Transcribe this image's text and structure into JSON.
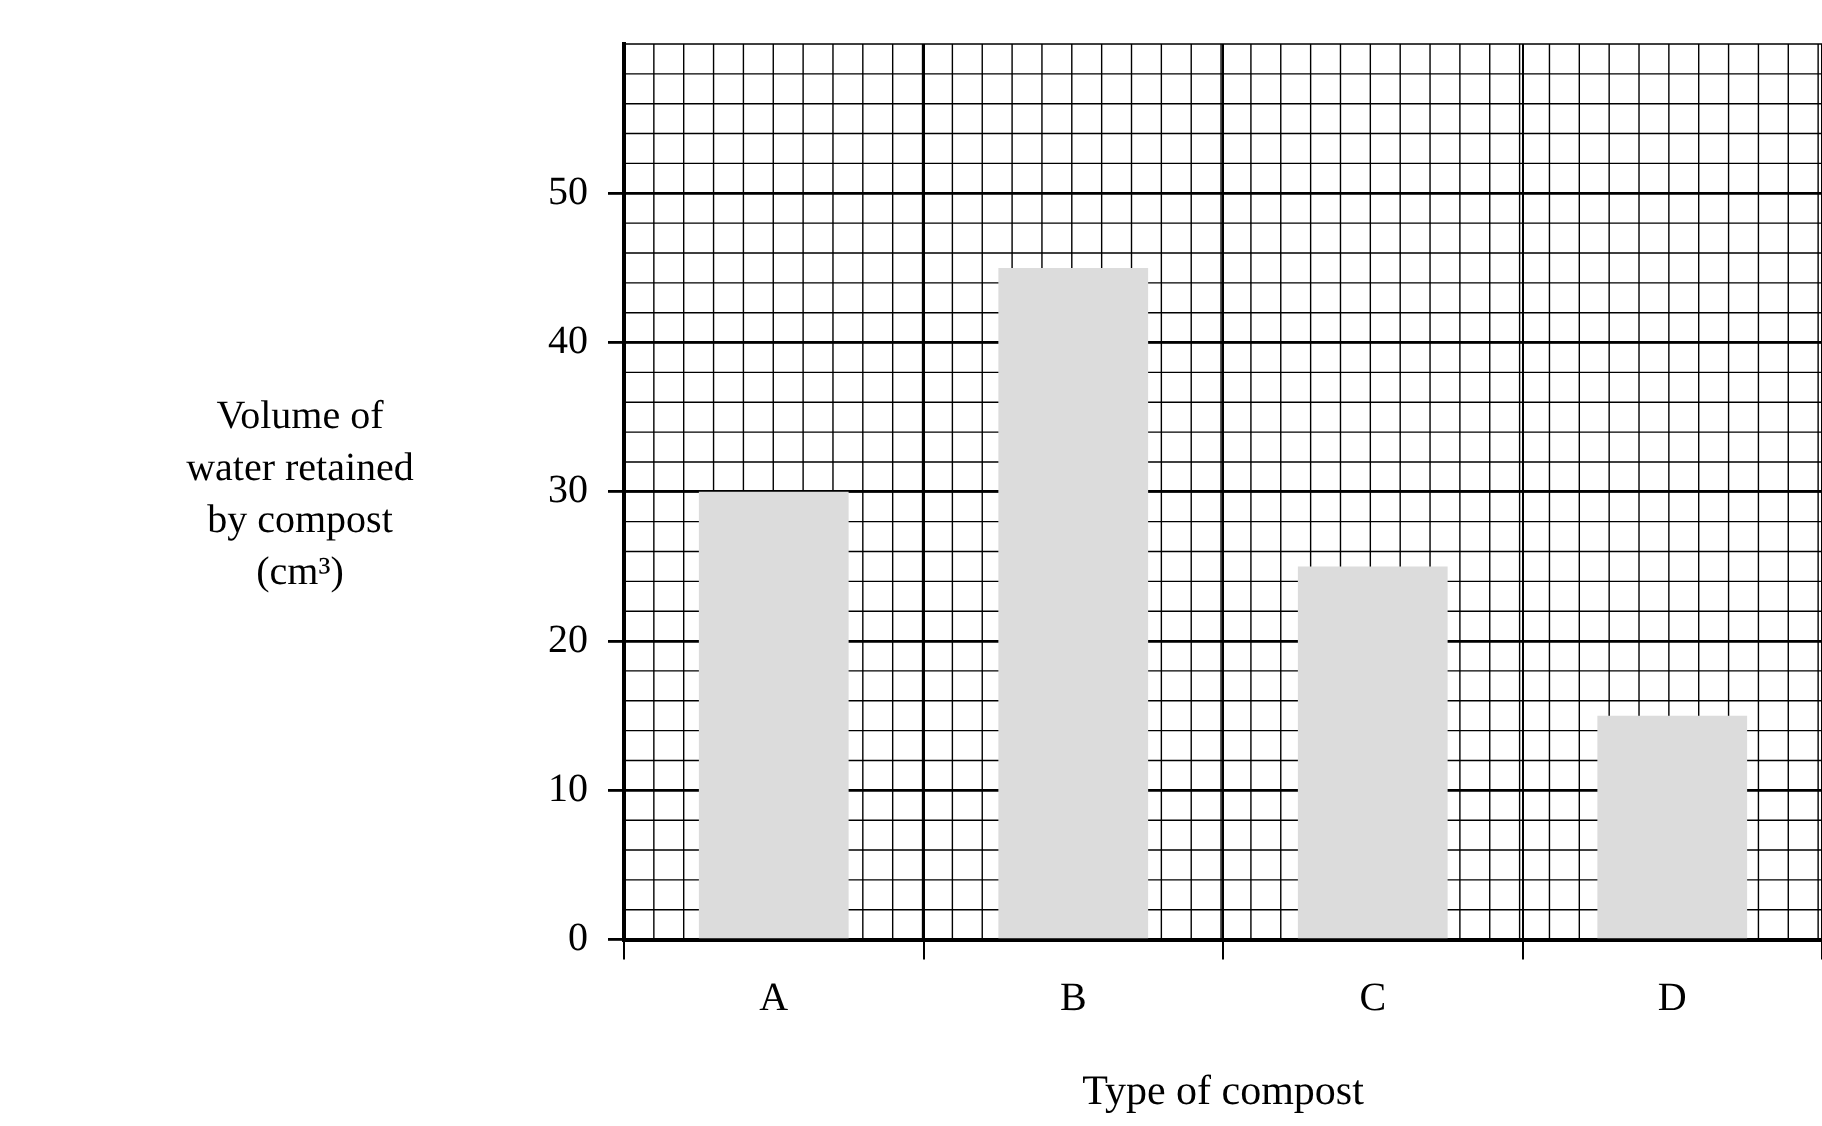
{
  "chart_data": {
    "type": "bar",
    "xlabel": "Type of compost",
    "ylabel": "Volume of water retained by compost (cm³)",
    "categories": [
      "A",
      "B",
      "C",
      "D"
    ],
    "values": [
      30,
      45,
      25,
      15
    ],
    "color": "#dcdcdc",
    "ylim": [
      0,
      60
    ],
    "yticks": [
      0,
      10,
      20,
      30,
      40,
      50
    ],
    "grid": true,
    "legend": false
  }
}
